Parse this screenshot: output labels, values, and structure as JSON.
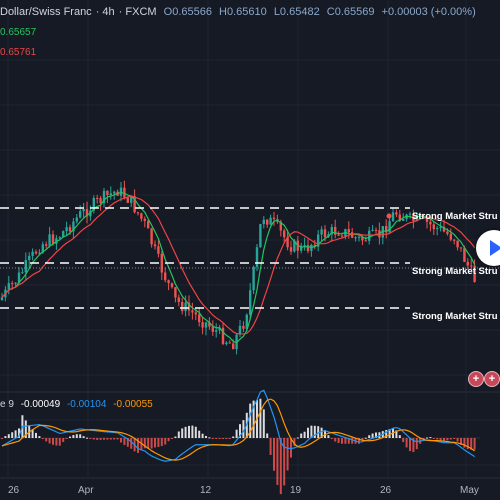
{
  "header": {
    "symbol": "Dollar/Swiss Franc",
    "interval": "4h",
    "exchange": "FXCM",
    "open": "O0.65566",
    "high": "H0.65610",
    "low": "L0.65482",
    "close": "C0.65569",
    "change": "+0.00003 (+0.00%)"
  },
  "indicators": {
    "ma_fast": "0.65657",
    "ma_slow": "0.65761"
  },
  "macd_legend": {
    "name": "e 9",
    "hist": "-0.00049",
    "macd": "-0.00104",
    "signal": "-0.00055"
  },
  "labels": {
    "level1": "Strong Market Stru",
    "level2": "Strong Market Stru",
    "level3": "Strong Market Stru"
  },
  "xaxis": [
    "26",
    "Apr",
    "12",
    "19",
    "26",
    "May"
  ],
  "colors": {
    "background": "#161a25",
    "up": "#26a69a",
    "down": "#ef5350",
    "ma_fast": "#22c55e",
    "ma_slow": "#ef4444",
    "macd": "#2196f3",
    "signal": "#ff9800"
  },
  "icons": [
    "play-icon",
    "plus-icon",
    "plus-icon"
  ]
}
